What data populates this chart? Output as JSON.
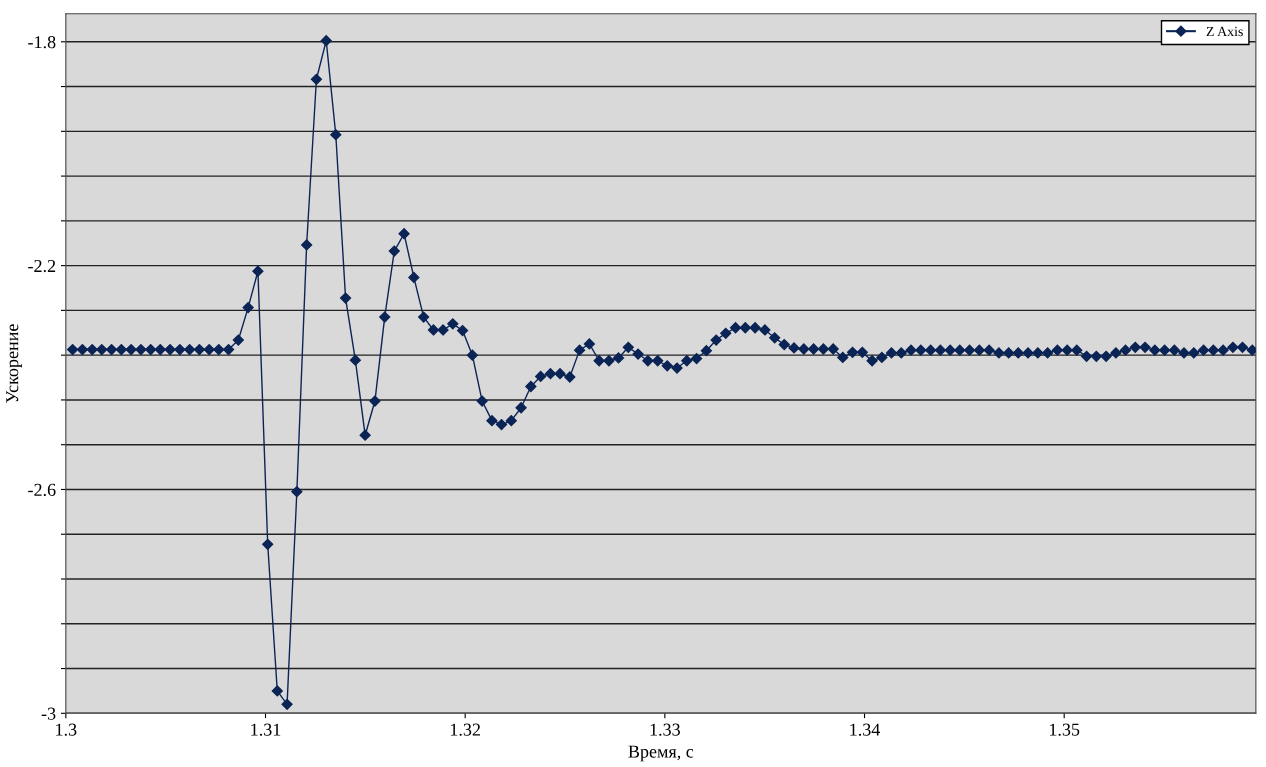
{
  "chart_data": {
    "type": "line",
    "xlabel": "Время, с",
    "ylabel": "Ускорение",
    "xlim": [
      1.3,
      1.3596
    ],
    "xticks": [
      1.3,
      1.31,
      1.32,
      1.33,
      1.34,
      1.35
    ],
    "ylim": [
      -3,
      -1.75
    ],
    "yticks": [
      -1.8,
      {
        "value": -1.88,
        "label": null
      },
      {
        "value": -1.96,
        "label": null
      },
      {
        "value": -2.04,
        "label": null
      },
      {
        "value": -2.12,
        "label": null
      },
      -2.2,
      {
        "value": -2.28,
        "label": null
      },
      {
        "value": -2.36,
        "label": null
      },
      {
        "value": -2.44,
        "label": null
      },
      {
        "value": -2.52,
        "label": null
      },
      -2.6,
      {
        "value": -2.68,
        "label": null
      },
      {
        "value": -2.76,
        "label": null
      },
      {
        "value": -2.84,
        "label": null
      },
      {
        "value": -2.92,
        "label": null
      },
      -3
    ],
    "grid": "y",
    "legend": "top right",
    "marker": "diamond",
    "line_style": "solid",
    "x": [
      1.30034,
      1.30083,
      1.30132,
      1.3018,
      1.30229,
      1.30278,
      1.30327,
      1.30376,
      1.30425,
      1.30473,
      1.30522,
      1.30571,
      1.3062,
      1.30669,
      1.30718,
      1.30766,
      1.30815,
      1.30864,
      1.30913,
      1.30962,
      1.31011,
      1.31059,
      1.31108,
      1.31157,
      1.31206,
      1.31255,
      1.31304,
      1.31352,
      1.31401,
      1.3145,
      1.31499,
      1.31548,
      1.31597,
      1.31645,
      1.31694,
      1.31743,
      1.31792,
      1.31841,
      1.31889,
      1.31938,
      1.31987,
      1.32036,
      1.32085,
      1.32134,
      1.32182,
      1.32231,
      1.3228,
      1.32329,
      1.32378,
      1.32427,
      1.32475,
      1.32524,
      1.32573,
      1.32622,
      1.32671,
      1.3272,
      1.32768,
      1.32817,
      1.32866,
      1.32915,
      1.32964,
      1.33012,
      1.33061,
      1.3311,
      1.33159,
      1.33208,
      1.33257,
      1.33305,
      1.33354,
      1.33403,
      1.33452,
      1.33501,
      1.3355,
      1.33598,
      1.33647,
      1.33696,
      1.33745,
      1.33794,
      1.33843,
      1.33891,
      1.3394,
      1.33989,
      1.34038,
      1.34087,
      1.34135,
      1.34184,
      1.34233,
      1.34282,
      1.34331,
      1.3438,
      1.34429,
      1.34477,
      1.34526,
      1.34575,
      1.34624,
      1.34673,
      1.34722,
      1.3477,
      1.34819,
      1.34868,
      1.34917,
      1.34966,
      1.35015,
      1.35063,
      1.35112,
      1.35161,
      1.3521,
      1.35259,
      1.35307,
      1.35356,
      1.35405,
      1.35454,
      1.35503,
      1.35552,
      1.356,
      1.35649,
      1.35698,
      1.35747,
      1.35796,
      1.35845,
      1.35893,
      1.35942
    ],
    "series": [
      {
        "name": "Z Axis",
        "color": "#0b2456",
        "values": [
          -2.35,
          -2.35,
          -2.35,
          -2.35,
          -2.35,
          -2.35,
          -2.35,
          -2.35,
          -2.35,
          -2.35,
          -2.35,
          -2.35,
          -2.35,
          -2.35,
          -2.35,
          -2.35,
          -2.35,
          -2.333,
          -2.275,
          -2.21,
          -2.698,
          -2.96,
          -2.984,
          -2.604,
          -2.163,
          -1.867,
          -1.798,
          -1.966,
          -2.258,
          -2.369,
          -2.503,
          -2.442,
          -2.292,
          -2.174,
          -2.143,
          -2.221,
          -2.292,
          -2.315,
          -2.315,
          -2.304,
          -2.316,
          -2.36,
          -2.442,
          -2.477,
          -2.484,
          -2.477,
          -2.454,
          -2.416,
          -2.398,
          -2.393,
          -2.393,
          -2.399,
          -2.351,
          -2.34,
          -2.37,
          -2.37,
          -2.365,
          -2.346,
          -2.358,
          -2.37,
          -2.37,
          -2.379,
          -2.383,
          -2.37,
          -2.366,
          -2.352,
          -2.333,
          -2.321,
          -2.311,
          -2.311,
          -2.311,
          -2.315,
          -2.329,
          -2.341,
          -2.347,
          -2.349,
          -2.349,
          -2.349,
          -2.349,
          -2.364,
          -2.355,
          -2.355,
          -2.37,
          -2.364,
          -2.356,
          -2.356,
          -2.351,
          -2.351,
          -2.351,
          -2.351,
          -2.351,
          -2.351,
          -2.351,
          -2.351,
          -2.351,
          -2.356,
          -2.356,
          -2.356,
          -2.356,
          -2.356,
          -2.356,
          -2.351,
          -2.351,
          -2.351,
          -2.362,
          -2.362,
          -2.362,
          -2.356,
          -2.351,
          -2.346,
          -2.346,
          -2.351,
          -2.351,
          -2.351,
          -2.356,
          -2.356,
          -2.351,
          -2.351,
          -2.351,
          -2.346,
          -2.346,
          -2.351
        ]
      }
    ]
  }
}
